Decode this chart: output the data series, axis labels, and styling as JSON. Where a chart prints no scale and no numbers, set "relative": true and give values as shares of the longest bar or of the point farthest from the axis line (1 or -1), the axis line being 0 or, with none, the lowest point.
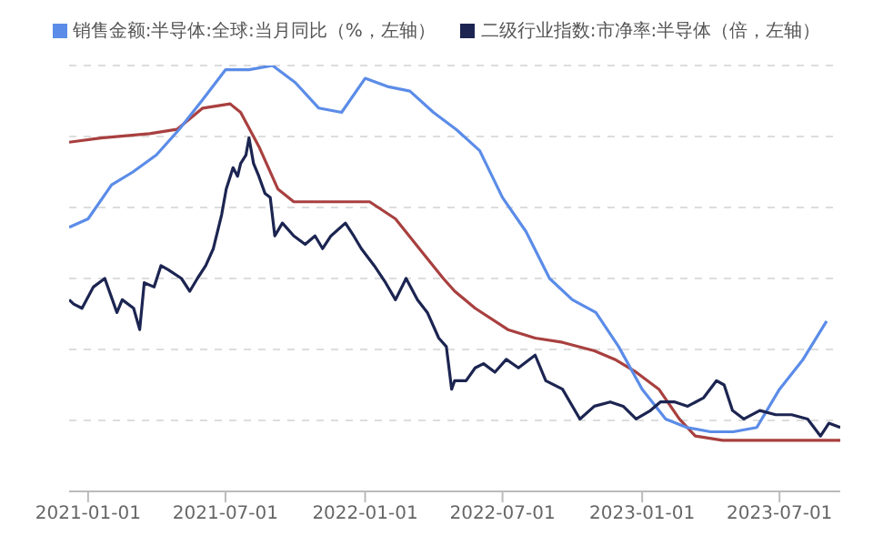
{
  "chart_data": {
    "type": "line",
    "relative": true,
    "grid": "y",
    "legend": "top",
    "marker": "none",
    "line_style": "solid",
    "xlim": [
      "2020-12-07",
      "2023-09-19"
    ],
    "xticks": [
      "2021-01-01",
      "2021-07-01",
      "2022-01-01",
      "2022-07-01",
      "2023-01-01",
      "2023-07-01"
    ],
    "series": [
      {
        "color": "#a8403f",
        "x": [
          "2020-12-07",
          "2021-01-18",
          "2021-03-23",
          "2021-04-28",
          "2021-06-01",
          "2021-07-07",
          "2021-07-21",
          "2021-08-14",
          "2021-09-08",
          "2021-09-29",
          "2021-11-25",
          "2022-01-07",
          "2022-02-10",
          "2022-03-18",
          "2022-04-14",
          "2022-04-29",
          "2022-05-26",
          "2022-07-08",
          "2022-08-13",
          "2022-09-18",
          "2022-10-30",
          "2022-11-26",
          "2022-12-24",
          "2023-01-23",
          "2023-02-19",
          "2023-03-12",
          "2023-04-17",
          "2023-09-19"
        ],
        "values": [
          0.82,
          0.83,
          0.84,
          0.85,
          0.9,
          0.91,
          0.89,
          0.81,
          0.71,
          0.68,
          0.68,
          0.68,
          0.64,
          0.56,
          0.5,
          0.47,
          0.43,
          0.38,
          0.36,
          0.35,
          0.33,
          0.31,
          0.28,
          0.24,
          0.17,
          0.13,
          0.12,
          0.12
        ]
      },
      {
        "name": "销售金额:半导体:全球:当月同比（%，左轴）",
        "color": "#5b8ce8",
        "x": [
          "2020-12-07",
          "2021-01-01",
          "2021-02-01",
          "2021-03-01",
          "2021-04-01",
          "2021-05-01",
          "2021-06-01",
          "2021-07-01",
          "2021-08-01",
          "2021-09-01",
          "2021-10-01",
          "2021-11-01",
          "2021-12-01",
          "2022-01-01",
          "2022-02-01",
          "2022-03-01",
          "2022-04-01",
          "2022-05-01",
          "2022-06-01",
          "2022-07-01",
          "2022-08-01",
          "2022-09-01",
          "2022-10-01",
          "2022-11-01",
          "2022-12-01",
          "2023-01-01",
          "2023-02-01",
          "2023-03-01",
          "2023-04-01",
          "2023-05-01",
          "2023-06-01",
          "2023-07-01",
          "2023-08-01",
          "2023-09-01"
        ],
        "values": [
          0.62,
          0.64,
          0.72,
          0.75,
          0.79,
          0.85,
          0.92,
          0.99,
          0.99,
          1.0,
          0.96,
          0.9,
          0.89,
          0.97,
          0.95,
          0.94,
          0.89,
          0.85,
          0.8,
          0.69,
          0.61,
          0.5,
          0.45,
          0.42,
          0.34,
          0.24,
          0.17,
          0.15,
          0.14,
          0.14,
          0.15,
          0.24,
          0.31,
          0.4
        ]
      },
      {
        "name": "二级行业指数:市净率:半导体（倍，左轴）",
        "color": "#1c2551",
        "x": [
          "2020-12-07",
          "2020-12-13",
          "2020-12-24",
          "2021-01-08",
          "2021-01-23",
          "2021-02-02",
          "2021-02-08",
          "2021-02-15",
          "2021-03-02",
          "2021-03-10",
          "2021-03-16",
          "2021-03-29",
          "2021-04-07",
          "2021-04-17",
          "2021-05-04",
          "2021-05-15",
          "2021-05-25",
          "2021-06-05",
          "2021-06-15",
          "2021-06-26",
          "2021-07-02",
          "2021-07-11",
          "2021-07-17",
          "2021-07-21",
          "2021-07-28",
          "2021-08-01",
          "2021-08-07",
          "2021-08-14",
          "2021-08-22",
          "2021-08-29",
          "2021-09-04",
          "2021-09-14",
          "2021-09-29",
          "2021-10-14",
          "2021-10-27",
          "2021-11-06",
          "2021-11-17",
          "2021-12-06",
          "2021-12-17",
          "2021-12-27",
          "2022-01-13",
          "2022-01-28",
          "2022-02-10",
          "2022-02-24",
          "2022-03-11",
          "2022-03-24",
          "2022-04-08",
          "2022-04-18",
          "2022-04-25",
          "2022-04-29",
          "2022-05-14",
          "2022-05-26",
          "2022-06-06",
          "2022-06-21",
          "2022-07-06",
          "2022-07-22",
          "2022-08-13",
          "2022-08-27",
          "2022-09-18",
          "2022-10-11",
          "2022-10-30",
          "2022-11-20",
          "2022-12-07",
          "2022-12-24",
          "2023-01-12",
          "2023-01-25",
          "2023-02-13",
          "2023-03-02",
          "2023-03-23",
          "2023-04-09",
          "2023-04-19",
          "2023-04-30",
          "2023-05-15",
          "2023-06-05",
          "2023-06-26",
          "2023-07-17",
          "2023-08-07",
          "2023-08-24",
          "2023-09-04",
          "2023-09-19"
        ],
        "values": [
          0.45,
          0.44,
          0.43,
          0.48,
          0.5,
          0.45,
          0.42,
          0.45,
          0.43,
          0.38,
          0.49,
          0.48,
          0.53,
          0.52,
          0.5,
          0.47,
          0.5,
          0.53,
          0.57,
          0.65,
          0.71,
          0.76,
          0.74,
          0.77,
          0.79,
          0.83,
          0.77,
          0.74,
          0.7,
          0.69,
          0.6,
          0.63,
          0.6,
          0.58,
          0.6,
          0.57,
          0.6,
          0.63,
          0.6,
          0.57,
          0.53,
          0.49,
          0.45,
          0.5,
          0.45,
          0.42,
          0.36,
          0.34,
          0.24,
          0.26,
          0.26,
          0.29,
          0.3,
          0.28,
          0.31,
          0.29,
          0.32,
          0.26,
          0.24,
          0.17,
          0.2,
          0.21,
          0.2,
          0.17,
          0.19,
          0.21,
          0.21,
          0.2,
          0.22,
          0.26,
          0.25,
          0.19,
          0.17,
          0.19,
          0.18,
          0.18,
          0.17,
          0.13,
          0.16,
          0.15
        ]
      }
    ]
  }
}
